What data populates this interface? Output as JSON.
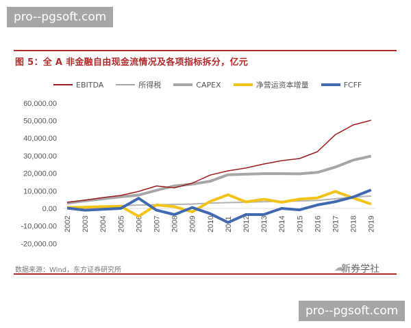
{
  "watermark": {
    "text": "pro--pgsoft.com"
  },
  "figure": {
    "title": "图 5：全 A 非金融自由现金流情况及各项指标拆分，亿元",
    "source": "数据来源：Wind，东方证券研究所",
    "brand": "新券学社",
    "brand_icon": "wechat-icon"
  },
  "legend": {
    "items": [
      {
        "label": "EBITDA",
        "color": "#9b1b1f",
        "width": 1.5
      },
      {
        "label": "所得税",
        "color": "#a6a6a6",
        "width": 2
      },
      {
        "label": "CAPEX",
        "color": "#a6a6a6",
        "width": 4
      },
      {
        "label": "净营运资本增量",
        "color": "#f2c318",
        "width": 4
      },
      {
        "label": "FCFF",
        "color": "#4169b0",
        "width": 4
      }
    ]
  },
  "chart_data": {
    "type": "line",
    "title": "图 5：全 A 非金融自由现金流情况及各项指标拆分，亿元",
    "xlabel": "",
    "ylabel": "",
    "ylim": [
      -20000,
      60000
    ],
    "yticks": [
      "60,000.00",
      "50,000.00",
      "40,000.00",
      "30,000.00",
      "20,000.00",
      "10,000.00",
      "0.00",
      "-10,000.00",
      "-20,000.00"
    ],
    "grid": false,
    "legend_position": "top",
    "x": [
      "2002",
      "2003",
      "2004",
      "2005",
      "2006",
      "2007",
      "2008",
      "2009",
      "2010",
      "2011",
      "2012",
      "2013",
      "2014",
      "2015",
      "2016",
      "2017",
      "2018",
      "2019"
    ],
    "series": [
      {
        "name": "EBITDA",
        "color": "#9b1b1f",
        "values": [
          3500,
          4700,
          6200,
          7400,
          9700,
          12800,
          11700,
          14400,
          19000,
          21400,
          23000,
          25300,
          27200,
          28400,
          32300,
          42000,
          47500,
          50200
        ]
      },
      {
        "name": "所得税",
        "color": "#b3b3b3",
        "values": [
          800,
          1000,
          1300,
          1600,
          1900,
          2100,
          2300,
          2500,
          3000,
          3300,
          3500,
          3800,
          4000,
          4200,
          4600,
          5500,
          6500,
          7000
        ]
      },
      {
        "name": "CAPEX",
        "color": "#a6a6a6",
        "values": [
          3000,
          4300,
          5500,
          6600,
          7600,
          10300,
          12800,
          13800,
          15500,
          19200,
          19500,
          19800,
          19800,
          19700,
          20500,
          23500,
          27500,
          29800
        ]
      },
      {
        "name": "净营运资本增量",
        "color": "#f2c318",
        "values": [
          500,
          700,
          1000,
          1200,
          -4500,
          2000,
          1000,
          -2000,
          4000,
          7800,
          3700,
          5200,
          3500,
          5300,
          6000,
          9700,
          6000,
          2500
        ]
      },
      {
        "name": "FCFF",
        "color": "#4169b0",
        "values": [
          200,
          -1000,
          -500,
          0,
          5800,
          -1000,
          -3500,
          500,
          -3000,
          -8000,
          -3500,
          -3500,
          0,
          -800,
          2000,
          3800,
          6500,
          10500
        ]
      }
    ]
  }
}
